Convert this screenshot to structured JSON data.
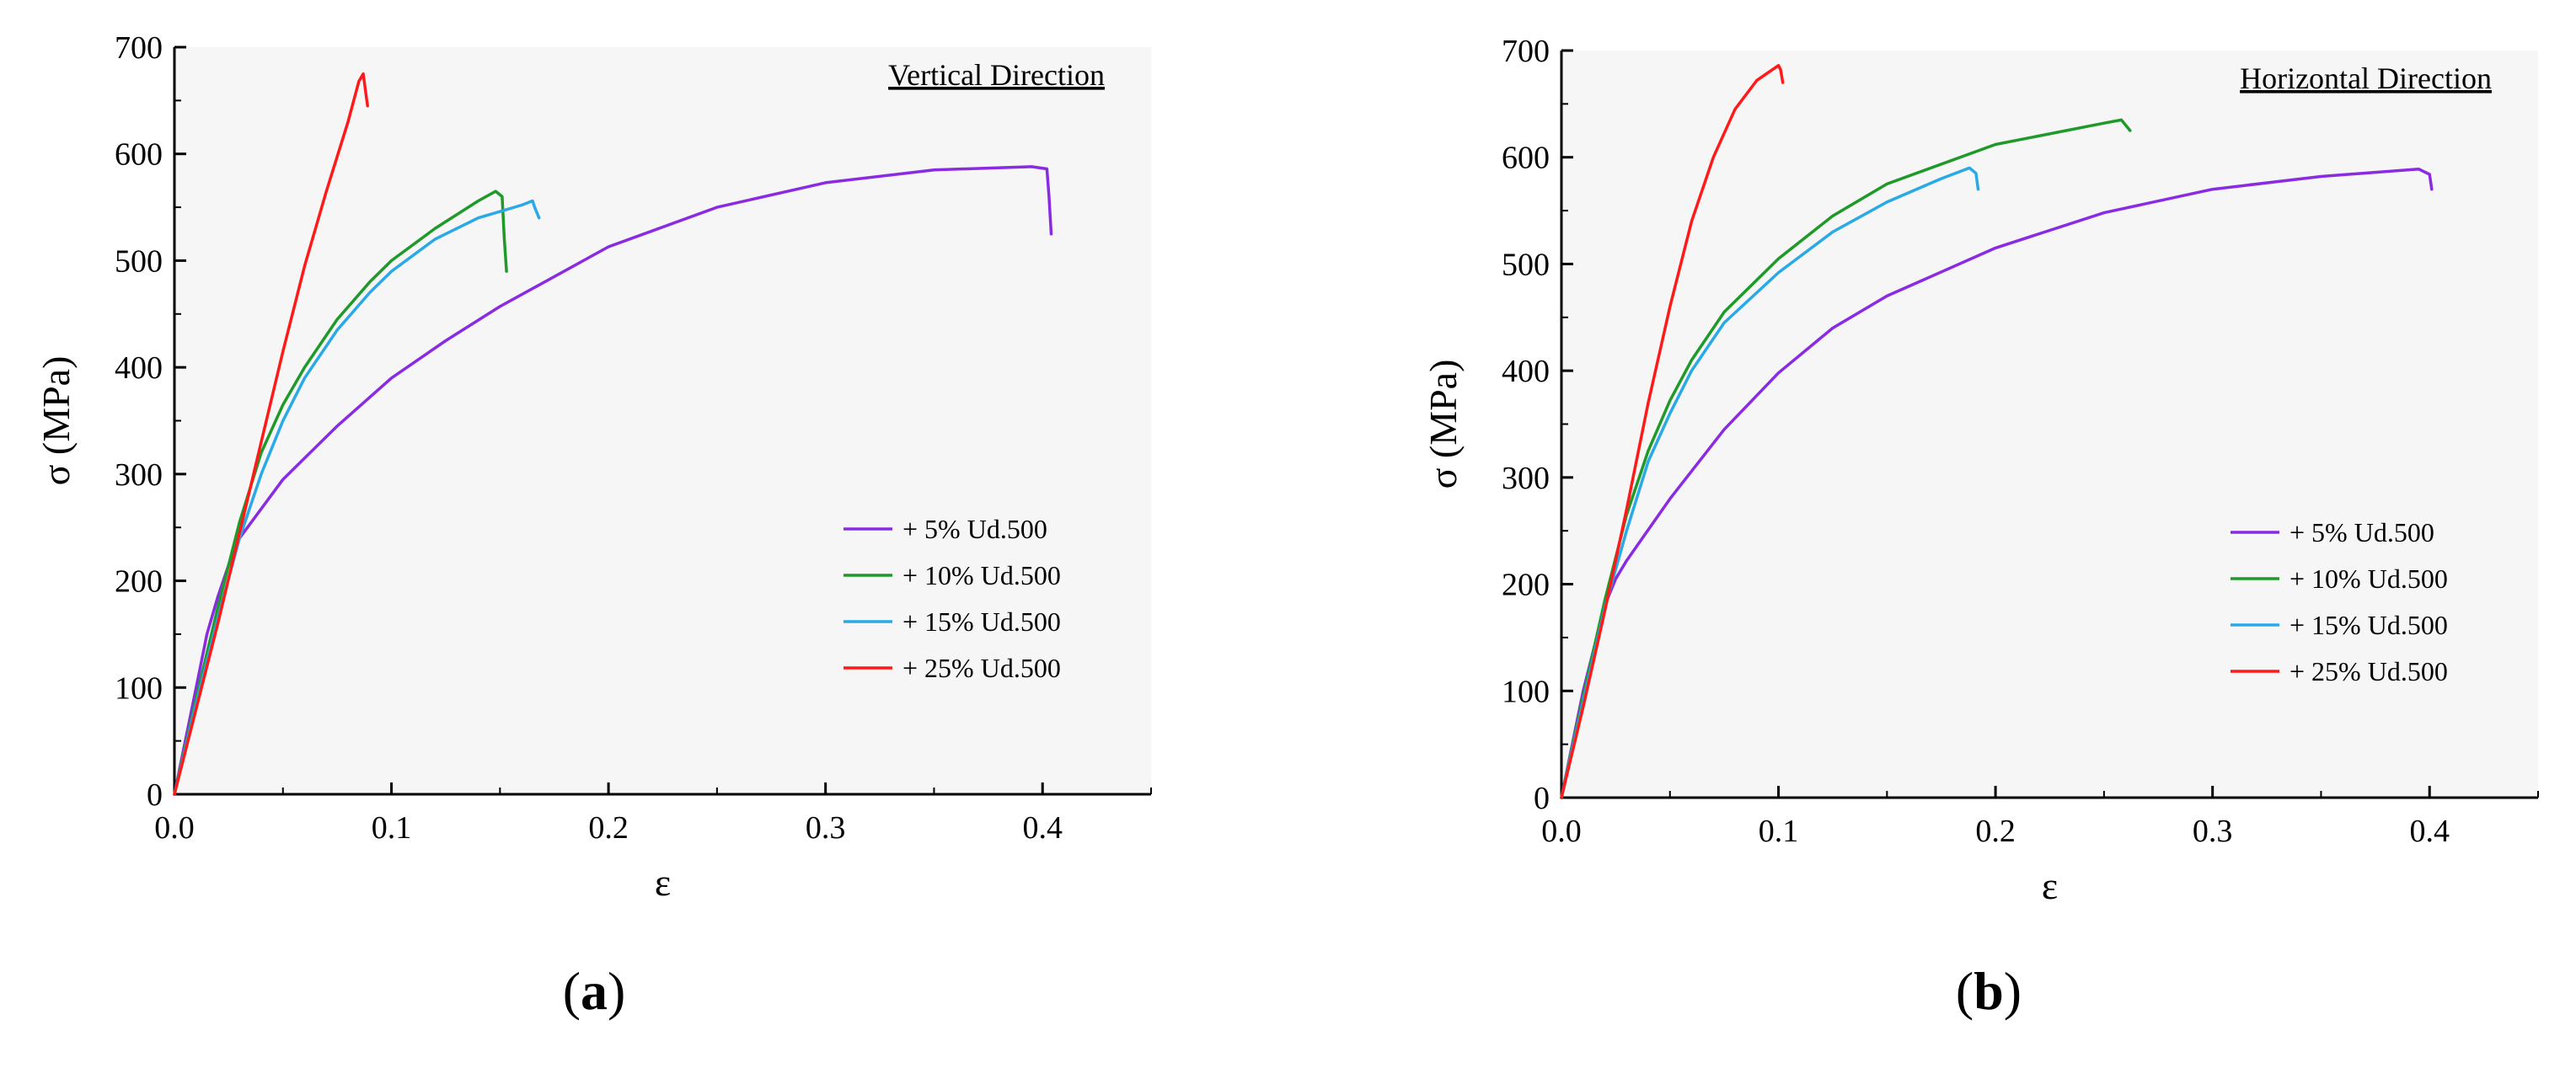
{
  "figure": {
    "panel_labels": [
      "(a)",
      "(b)"
    ]
  },
  "chart_data": [
    {
      "type": "line",
      "panel_label": "(a)",
      "title": "Vertical Direction",
      "xlabel": "ε",
      "ylabel": "σ (MPa)",
      "xlim": [
        0,
        0.45
      ],
      "ylim": [
        0,
        700
      ],
      "xticks": [
        "0.0",
        "0.1",
        "0.2",
        "0.3",
        "0.4"
      ],
      "yticks": [
        "0",
        "100",
        "200",
        "300",
        "400",
        "500",
        "600",
        "700"
      ],
      "legend_position": "bottom-right",
      "series": [
        {
          "name": "+ 5% Ud.500",
          "color": "#8a2be2",
          "points": [
            [
              0,
              0
            ],
            [
              0.005,
              50
            ],
            [
              0.01,
              100
            ],
            [
              0.015,
              150
            ],
            [
              0.02,
              185
            ],
            [
              0.025,
              215
            ],
            [
              0.03,
              240
            ],
            [
              0.05,
              295
            ],
            [
              0.075,
              345
            ],
            [
              0.1,
              390
            ],
            [
              0.125,
              425
            ],
            [
              0.15,
              457
            ],
            [
              0.2,
              513
            ],
            [
              0.25,
              550
            ],
            [
              0.3,
              573
            ],
            [
              0.35,
              585
            ],
            [
              0.395,
              588
            ],
            [
              0.402,
              586
            ],
            [
              0.403,
              560
            ],
            [
              0.404,
              525
            ]
          ]
        },
        {
          "name": "+ 10% Ud.500",
          "color": "#1f9a2a",
          "points": [
            [
              0,
              0
            ],
            [
              0.01,
              90
            ],
            [
              0.02,
              175
            ],
            [
              0.03,
              255
            ],
            [
              0.04,
              320
            ],
            [
              0.05,
              365
            ],
            [
              0.06,
              400
            ],
            [
              0.075,
              445
            ],
            [
              0.09,
              480
            ],
            [
              0.1,
              500
            ],
            [
              0.12,
              530
            ],
            [
              0.14,
              556
            ],
            [
              0.148,
              565
            ],
            [
              0.151,
              560
            ],
            [
              0.152,
              520
            ],
            [
              0.153,
              490
            ]
          ]
        },
        {
          "name": "+ 15% Ud.500",
          "color": "#29a9e6",
          "points": [
            [
              0,
              0
            ],
            [
              0.01,
              85
            ],
            [
              0.02,
              165
            ],
            [
              0.03,
              240
            ],
            [
              0.04,
              300
            ],
            [
              0.05,
              350
            ],
            [
              0.06,
              390
            ],
            [
              0.075,
              435
            ],
            [
              0.09,
              470
            ],
            [
              0.1,
              490
            ],
            [
              0.12,
              520
            ],
            [
              0.14,
              540
            ],
            [
              0.16,
              552
            ],
            [
              0.165,
              556
            ],
            [
              0.166,
              550
            ],
            [
              0.168,
              540
            ]
          ]
        },
        {
          "name": "+ 25% Ud.500",
          "color": "#ff1a1a",
          "points": [
            [
              0,
              0
            ],
            [
              0.01,
              80
            ],
            [
              0.02,
              160
            ],
            [
              0.03,
              245
            ],
            [
              0.04,
              330
            ],
            [
              0.05,
              415
            ],
            [
              0.06,
              495
            ],
            [
              0.07,
              565
            ],
            [
              0.08,
              630
            ],
            [
              0.085,
              668
            ],
            [
              0.087,
              675
            ],
            [
              0.088,
              660
            ],
            [
              0.089,
              645
            ]
          ]
        }
      ]
    },
    {
      "type": "line",
      "panel_label": "(b)",
      "title": "Horizontal Direction",
      "xlabel": "ε",
      "ylabel": "σ (MPa)",
      "xlim": [
        0,
        0.45
      ],
      "ylim": [
        0,
        700
      ],
      "xticks": [
        "0.0",
        "0.1",
        "0.2",
        "0.3",
        "0.4"
      ],
      "yticks": [
        "0",
        "100",
        "200",
        "300",
        "400",
        "500",
        "600",
        "700"
      ],
      "legend_position": "bottom-right",
      "series": [
        {
          "name": "+ 5% Ud.500",
          "color": "#8a2be2",
          "points": [
            [
              0,
              0
            ],
            [
              0.005,
              50
            ],
            [
              0.01,
              100
            ],
            [
              0.015,
              140
            ],
            [
              0.02,
              180
            ],
            [
              0.025,
              205
            ],
            [
              0.03,
              222
            ],
            [
              0.05,
              280
            ],
            [
              0.075,
              345
            ],
            [
              0.1,
              398
            ],
            [
              0.125,
              440
            ],
            [
              0.15,
              470
            ],
            [
              0.2,
              515
            ],
            [
              0.25,
              548
            ],
            [
              0.3,
              570
            ],
            [
              0.35,
              582
            ],
            [
              0.395,
              589
            ],
            [
              0.4,
              584
            ],
            [
              0.401,
              570
            ]
          ]
        },
        {
          "name": "+ 10% Ud.500",
          "color": "#1f9a2a",
          "points": [
            [
              0,
              0
            ],
            [
              0.01,
              95
            ],
            [
              0.02,
              185
            ],
            [
              0.03,
              265
            ],
            [
              0.04,
              325
            ],
            [
              0.05,
              372
            ],
            [
              0.06,
              410
            ],
            [
              0.075,
              455
            ],
            [
              0.1,
              505
            ],
            [
              0.125,
              545
            ],
            [
              0.15,
              575
            ],
            [
              0.2,
              612
            ],
            [
              0.25,
              632
            ],
            [
              0.258,
              635
            ],
            [
              0.26,
              630
            ],
            [
              0.262,
              625
            ]
          ]
        },
        {
          "name": "+ 15% Ud.500",
          "color": "#29a9e6",
          "points": [
            [
              0,
              0
            ],
            [
              0.01,
              90
            ],
            [
              0.02,
              178
            ],
            [
              0.03,
              250
            ],
            [
              0.04,
              315
            ],
            [
              0.05,
              360
            ],
            [
              0.06,
              400
            ],
            [
              0.075,
              445
            ],
            [
              0.1,
              492
            ],
            [
              0.125,
              530
            ],
            [
              0.15,
              558
            ],
            [
              0.175,
              580
            ],
            [
              0.188,
              590
            ],
            [
              0.191,
              585
            ],
            [
              0.192,
              570
            ]
          ]
        },
        {
          "name": "+ 25% Ud.500",
          "color": "#ff1a1a",
          "points": [
            [
              0,
              0
            ],
            [
              0.01,
              85
            ],
            [
              0.02,
              175
            ],
            [
              0.03,
              270
            ],
            [
              0.04,
              370
            ],
            [
              0.05,
              460
            ],
            [
              0.06,
              540
            ],
            [
              0.07,
              600
            ],
            [
              0.08,
              645
            ],
            [
              0.09,
              672
            ],
            [
              0.1,
              686
            ],
            [
              0.101,
              682
            ],
            [
              0.102,
              670
            ]
          ]
        }
      ]
    }
  ]
}
